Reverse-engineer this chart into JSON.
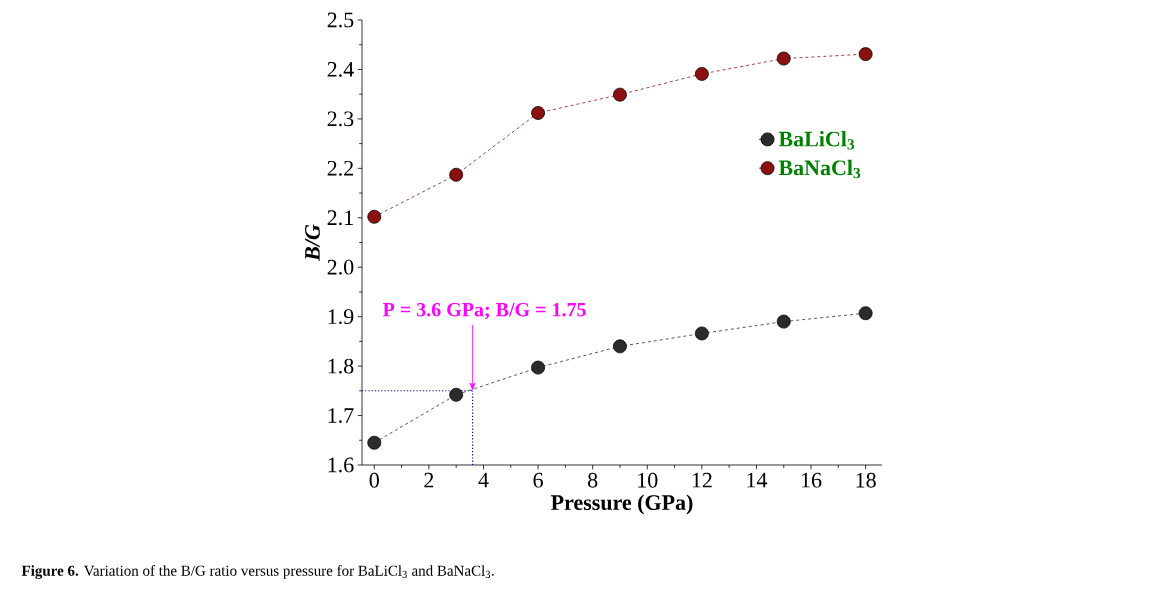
{
  "chart_data": {
    "type": "line",
    "x": [
      0,
      3,
      6,
      9,
      12,
      15,
      18
    ],
    "series": [
      {
        "name": "BaLiCl$_{3}$",
        "color": "#2b2b2b",
        "values": [
          1.645,
          1.742,
          1.797,
          1.84,
          1.866,
          1.89,
          1.907
        ]
      },
      {
        "name": "BaNaCl$_{3}$",
        "color": "#8b1010",
        "values": [
          2.102,
          2.187,
          2.312,
          2.349,
          2.391,
          2.422,
          2.431
        ]
      }
    ],
    "xlabel": "Pressure (GPa)",
    "ylabel": "B/G",
    "xlim": [
      -0.45,
      18.6
    ],
    "ylim": [
      1.6,
      2.5
    ],
    "xticks": [
      0,
      2,
      4,
      6,
      8,
      10,
      12,
      14,
      16,
      18
    ],
    "yticks": [
      1.6,
      1.7,
      1.8,
      1.9,
      {
        "value": 2.0,
        "label": "2.0"
      },
      2.1,
      2.2,
      2.3,
      2.4,
      2.5
    ],
    "ref_lines": [
      {
        "axis": "x",
        "value": 3.6,
        "color": "#0000a0",
        "line_style": "dotted"
      },
      {
        "axis": "y",
        "value": 1.75,
        "color": "#0000a0",
        "line_style": "dotted"
      }
    ],
    "annotations": [
      {
        "text": "P = 3.6 GPa;  B/G = 1.75",
        "x": 3.6,
        "y": 1.75
      },
      "**Figure 6.** Variation of the B/G ratio versus pressure for BaLiCl$_{3}$ and BaNaCl$_{3}$."
    ],
    "legend": "top right",
    "marker": "circle",
    "line_style": "dashed",
    "grid": false
  }
}
